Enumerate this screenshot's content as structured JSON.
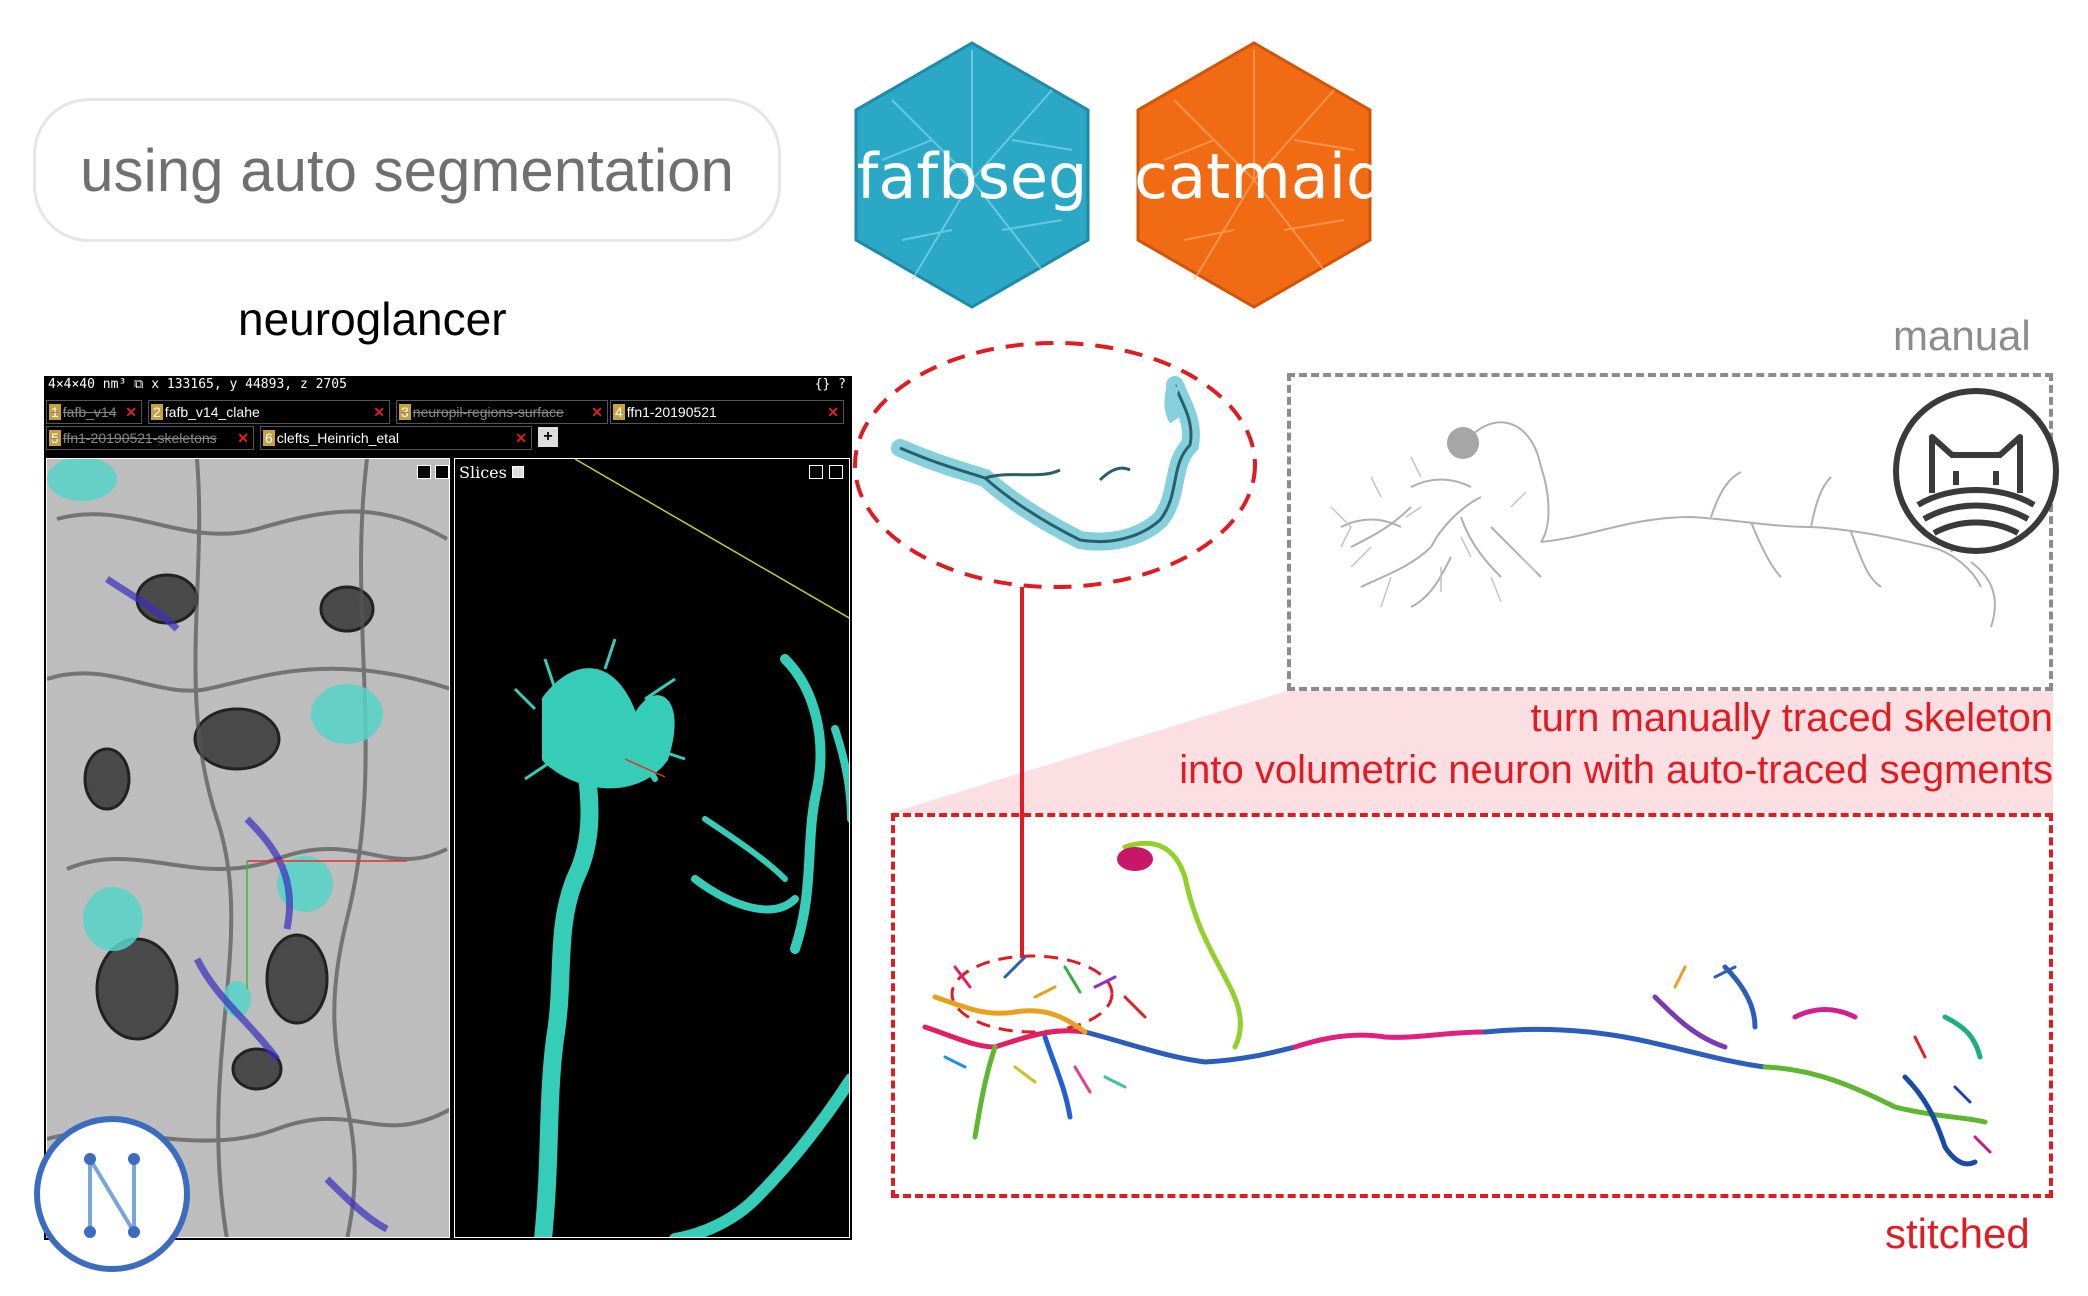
{
  "header": {
    "title": "using auto segmentation"
  },
  "badges": [
    {
      "label": "fafbseg",
      "color": "#2aa8c6"
    },
    {
      "label": "catmaid",
      "color": "#f16a14"
    }
  ],
  "neuroglancer": {
    "title": "neuroglancer",
    "topbar": {
      "voxel": "4×4×40 nm³",
      "coords": "x 133165, y 44893, z 2705",
      "icons": "{} ?"
    },
    "layers": [
      {
        "num": "1",
        "name": "fafb_v14",
        "active": false
      },
      {
        "num": "2",
        "name": "fafb_v14_clahe",
        "active": true
      },
      {
        "num": "3",
        "name": "neuropil-regions-surface",
        "active": false
      },
      {
        "num": "4",
        "name": "ffn1-20190521",
        "active": true
      },
      {
        "num": "5",
        "name": "ffn1-20190521-skeletons",
        "active": false
      },
      {
        "num": "6",
        "name": "clefts_Heinrich_etal",
        "active": true
      }
    ],
    "add_layer": "+",
    "panel3d": {
      "slices_label": "Slices"
    },
    "logo_icon": "neuroglancer-logo-icon"
  },
  "manual": {
    "label": "manual",
    "icon": "catmaid-cat-icon"
  },
  "caption": {
    "line1": "turn manually traced skeleton",
    "line2": "into volumetric neuron with auto-traced segments"
  },
  "stitched": {
    "label": "stitched"
  },
  "colors": {
    "accent_red": "#e11b22",
    "gray": "#8c8c8c",
    "cyan_mesh": "#36cdb8"
  }
}
